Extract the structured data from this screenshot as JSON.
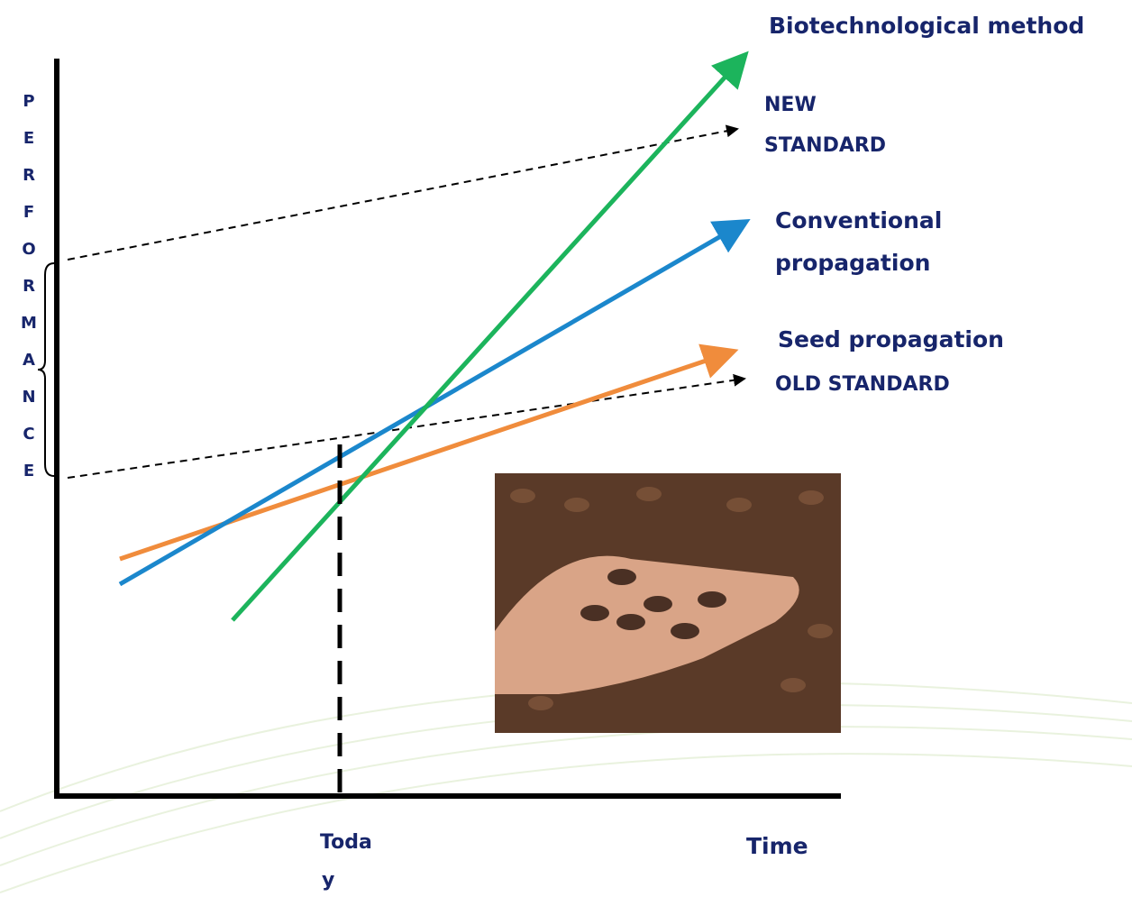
{
  "y_axis_label": "PERFORMANCE",
  "x_axis_label": "Time",
  "today_label": [
    "Toda",
    "y"
  ],
  "curves": [
    {
      "label": [
        "Biotechnological method"
      ]
    },
    {
      "label": [
        "NEW",
        "STANDARD"
      ]
    },
    {
      "label": [
        "Conventional",
        "propagation"
      ]
    },
    {
      "label": [
        "Seed propagation"
      ]
    },
    {
      "label": [
        "OLD STANDARD"
      ]
    }
  ]
}
